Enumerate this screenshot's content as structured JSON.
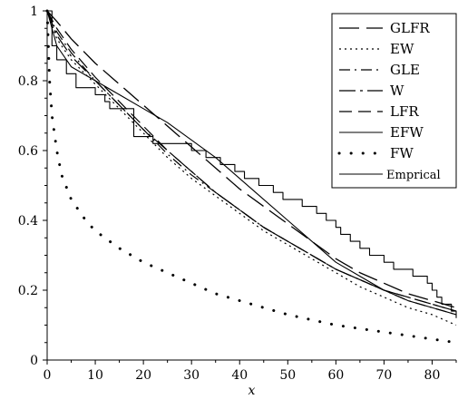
{
  "chart_data": {
    "type": "line",
    "title": "",
    "xlabel": "x",
    "ylabel": "",
    "xlim": [
      0,
      85
    ],
    "ylim": [
      0,
      1
    ],
    "grid": false,
    "legend_position": "top-right",
    "xticks": [
      0,
      10,
      20,
      30,
      40,
      50,
      60,
      70,
      80
    ],
    "yticks": [
      0,
      0.2,
      0.4,
      0.6,
      0.8,
      1
    ],
    "ytick_labels": [
      "0",
      "0.2",
      "0.4",
      "0.6",
      "0.8",
      "1"
    ],
    "series": [
      {
        "name": "GLFR",
        "style": "longdash",
        "x": [
          0,
          2,
          5,
          10,
          15,
          20,
          25,
          30,
          35,
          40,
          45,
          50,
          55,
          60,
          65,
          70,
          75,
          80,
          85
        ],
        "y": [
          1.0,
          0.97,
          0.92,
          0.85,
          0.79,
          0.73,
          0.67,
          0.61,
          0.55,
          0.49,
          0.44,
          0.39,
          0.34,
          0.29,
          0.25,
          0.22,
          0.19,
          0.17,
          0.15
        ]
      },
      {
        "name": "EW",
        "style": "dot",
        "x": [
          0,
          2,
          5,
          10,
          15,
          20,
          25,
          30,
          35,
          40,
          45,
          50,
          55,
          60,
          65,
          70,
          75,
          80,
          85
        ],
        "y": [
          1.0,
          0.92,
          0.86,
          0.79,
          0.72,
          0.65,
          0.58,
          0.52,
          0.47,
          0.42,
          0.37,
          0.33,
          0.29,
          0.25,
          0.21,
          0.18,
          0.15,
          0.13,
          0.1
        ]
      },
      {
        "name": "GLE",
        "style": "dashdot",
        "x": [
          0,
          2,
          5,
          10,
          15,
          20,
          25,
          30,
          35,
          40,
          45,
          50,
          55,
          60,
          65,
          70,
          75,
          80,
          85
        ],
        "y": [
          1.0,
          0.94,
          0.88,
          0.8,
          0.73,
          0.66,
          0.59,
          0.53,
          0.48,
          0.43,
          0.38,
          0.34,
          0.3,
          0.26,
          0.23,
          0.2,
          0.17,
          0.15,
          0.13
        ]
      },
      {
        "name": "W",
        "style": "longdashdot",
        "x": [
          0,
          2,
          5,
          10,
          15,
          20,
          25,
          30,
          35,
          40,
          45,
          50,
          55,
          60,
          65,
          70,
          75,
          80,
          85
        ],
        "y": [
          1.0,
          0.93,
          0.87,
          0.8,
          0.73,
          0.66,
          0.6,
          0.54,
          0.48,
          0.43,
          0.38,
          0.34,
          0.3,
          0.26,
          0.23,
          0.2,
          0.18,
          0.16,
          0.14
        ]
      },
      {
        "name": "LFR",
        "style": "dash",
        "x": [
          0,
          2,
          5,
          10,
          15,
          20,
          25,
          30,
          35,
          40,
          45,
          50,
          55,
          60,
          65,
          70,
          75,
          80,
          85
        ],
        "y": [
          1.0,
          0.95,
          0.89,
          0.81,
          0.74,
          0.67,
          0.6,
          0.54,
          0.48,
          0.43,
          0.38,
          0.34,
          0.3,
          0.26,
          0.23,
          0.2,
          0.18,
          0.16,
          0.14
        ]
      },
      {
        "name": "EFW",
        "style": "solid",
        "x": [
          0,
          2,
          5,
          10,
          15,
          20,
          25,
          30,
          35,
          40,
          45,
          50,
          55,
          60,
          65,
          70,
          75,
          80,
          85
        ],
        "y": [
          1.0,
          0.9,
          0.84,
          0.8,
          0.76,
          0.72,
          0.68,
          0.63,
          0.58,
          0.52,
          0.46,
          0.4,
          0.34,
          0.28,
          0.24,
          0.2,
          0.17,
          0.15,
          0.13
        ]
      },
      {
        "name": "FW",
        "style": "sparsedot",
        "x": [
          0,
          0.5,
          1,
          2,
          3,
          5,
          8,
          10,
          15,
          20,
          25,
          30,
          35,
          40,
          45,
          50,
          55,
          60,
          65,
          70,
          75,
          80,
          85
        ],
        "y": [
          1.0,
          0.8,
          0.7,
          0.6,
          0.53,
          0.46,
          0.4,
          0.37,
          0.32,
          0.28,
          0.25,
          0.22,
          0.19,
          0.17,
          0.15,
          0.13,
          0.115,
          0.1,
          0.09,
          0.08,
          0.07,
          0.06,
          0.05
        ]
      },
      {
        "name": "Emprical",
        "style": "step",
        "x": [
          0,
          1,
          2,
          4,
          6,
          10,
          12,
          13,
          18,
          19,
          22,
          25,
          30,
          33,
          36,
          39,
          41,
          44,
          47,
          49,
          53,
          56,
          58,
          60,
          61,
          63,
          65,
          67,
          70,
          72,
          76,
          79,
          80,
          81,
          82,
          84,
          85
        ],
        "y": [
          1.0,
          0.9,
          0.86,
          0.82,
          0.78,
          0.76,
          0.74,
          0.72,
          0.64,
          0.64,
          0.62,
          0.62,
          0.6,
          0.58,
          0.56,
          0.54,
          0.52,
          0.5,
          0.48,
          0.46,
          0.44,
          0.42,
          0.4,
          0.38,
          0.36,
          0.34,
          0.32,
          0.3,
          0.28,
          0.26,
          0.24,
          0.22,
          0.2,
          0.18,
          0.16,
          0.14,
          0.12
        ]
      }
    ]
  }
}
